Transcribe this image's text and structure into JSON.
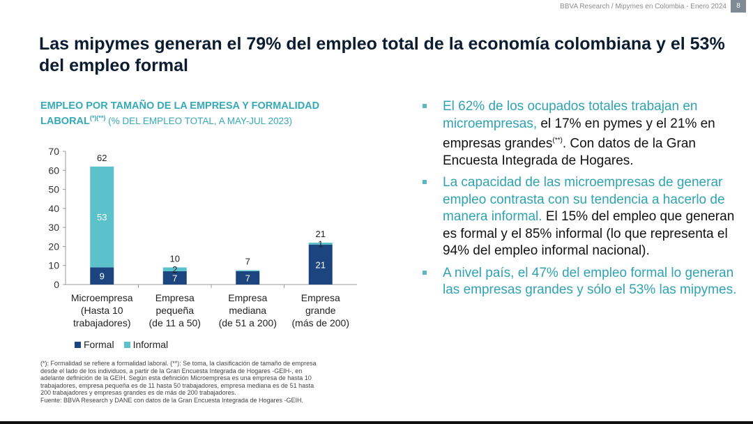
{
  "header": {
    "text": "BBVA Research / Mipymes en Colombia - Enero 2024",
    "page_number": "8"
  },
  "title": "Las mipymes generan el 79% del empleo total de la economía colombiana y el 53% del empleo formal",
  "chart_title": {
    "main": "EMPLEO POR TAMAÑO DE LA EMPRESA Y FORMALIDAD LABORAL",
    "sup": "(*)(**)",
    "sub": " (% DEL EMPLEO TOTAL, A MAY-JUL 2023)"
  },
  "chart_data": {
    "type": "bar",
    "stacked": true,
    "categories": [
      [
        "Microempresa",
        "(Hasta 10",
        "trabajadores)"
      ],
      [
        "Empresa",
        "pequeña",
        "(de 11 a 50)"
      ],
      [
        "Empresa",
        "mediana",
        "(de 51 a 200)"
      ],
      [
        "Empresa",
        "grande",
        "(más de 200)"
      ]
    ],
    "series": [
      {
        "name": "Formal",
        "values": [
          9,
          7,
          7,
          21
        ],
        "color": "#1c4580"
      },
      {
        "name": "Informal",
        "values": [
          53,
          2,
          0.5,
          1
        ],
        "color": "#5bc2cc"
      }
    ],
    "data_labels": {
      "Formal": [
        "9",
        "7",
        "7",
        "21"
      ],
      "Informal": [
        "53",
        "2",
        "",
        "1"
      ]
    },
    "totals": [
      "62",
      "10",
      "7",
      "21"
    ],
    "ylim": [
      0,
      70
    ],
    "yticks": [
      0,
      10,
      20,
      30,
      40,
      50,
      60,
      70
    ],
    "grid": false,
    "legend": "bottom-left"
  },
  "legend": [
    {
      "label": "Formal",
      "color": "#1c4580"
    },
    {
      "label": "Informal",
      "color": "#5bc2cc"
    }
  ],
  "footnote": {
    "lines": [
      "(*): Formalidad se refiere a formalidad laboral. (**): Se toma, la clasificación de tamaño de empresa",
      "desde el lado de los individuos, a partir de la Gran Encuesta Integrada de Hogares -GEIH-, en",
      "adelante definición de la GEIH. Según esta definición Microempresa es una empresa de hasta 10",
      "trabajadores, empresa pequeña es de 11 hasta 50 trabajadores, empresa mediana es de 51 hasta",
      "200 trabajadores y empresas grandes es de más de 200 trabajadores.",
      "Fuente: BBVA Research y DANE con datos de la Gran Encuesta Integrada de Hogares -GEIH."
    ]
  },
  "bullets": [
    {
      "highlight": "El 62% de los ocupados totales trabajan en microempresas,",
      "text": " el 17% en pymes y el 21% en empresas grandes",
      "sup": "(**)",
      "tail": ". Con datos de la Gran Encuesta Integrada de Hogares."
    },
    {
      "highlight": "La capacidad de las microempresas de generar empleo contrasta con su tendencia a hacerlo de manera informal.",
      "text": " El 15% del empleo que generan es formal y el 85% informal (lo que representa el 94% del empleo informal nacional).",
      "sup": "",
      "tail": ""
    },
    {
      "highlight": "A nivel país, el 47% del empleo formal lo generan las empresas grandes y sólo el 53% las mipymes.",
      "text": "",
      "sup": "",
      "tail": ""
    }
  ],
  "colors": {
    "accent": "#35a9b6",
    "title": "#0c1c30",
    "formal": "#1c4580",
    "informal": "#5bc2cc"
  }
}
